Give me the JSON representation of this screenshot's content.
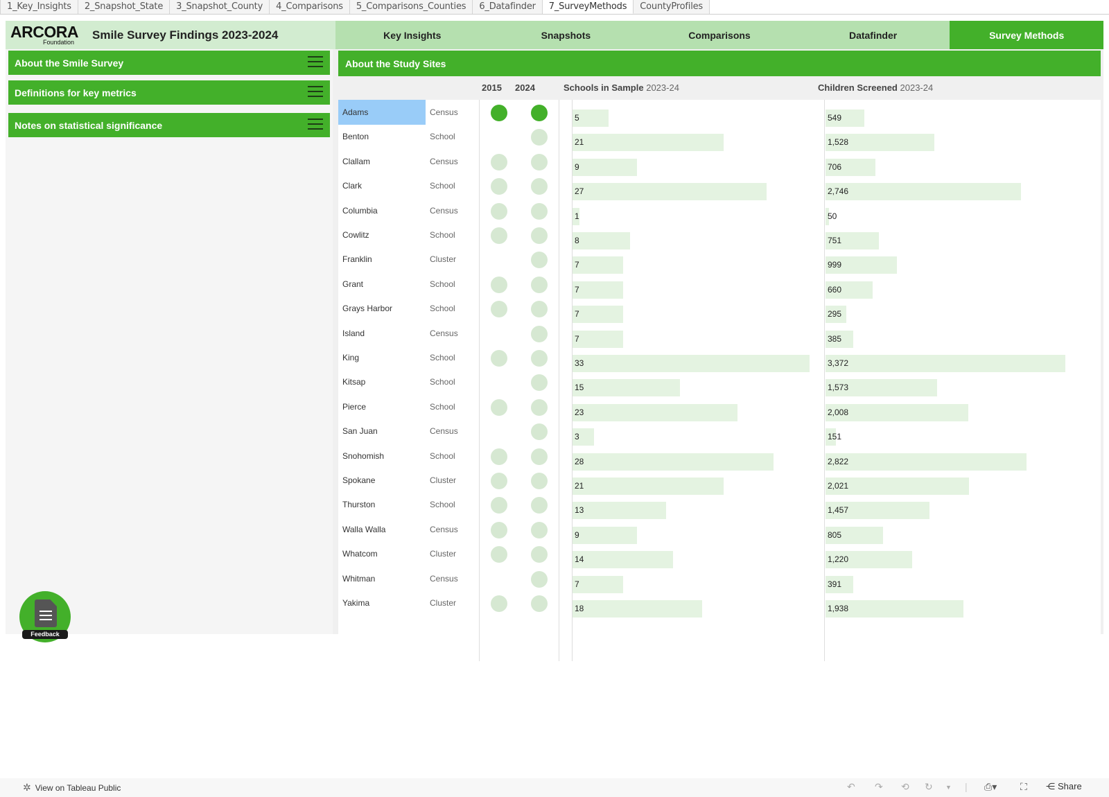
{
  "sheet_tabs": [
    {
      "label": "1_Key_Insights",
      "active": false
    },
    {
      "label": "2_Snapshot_State",
      "active": false
    },
    {
      "label": "3_Snapshot_County",
      "active": false
    },
    {
      "label": "4_Comparisons",
      "active": false
    },
    {
      "label": "5_Comparisons_Counties",
      "active": false
    },
    {
      "label": "6_Datafinder",
      "active": false
    },
    {
      "label": "7_SurveyMethods",
      "active": true
    },
    {
      "label": "CountyProfiles",
      "active": false
    }
  ],
  "header": {
    "logo_main": "ARCORA",
    "logo_sub": "Foundation",
    "title": "Smile Survey Findings 2023-2024",
    "nav": [
      {
        "label": "Key Insights",
        "active": false
      },
      {
        "label": "Snapshots",
        "active": false
      },
      {
        "label": "Comparisons",
        "active": false
      },
      {
        "label": "Datafinder",
        "active": false
      },
      {
        "label": "Survey Methods",
        "active": true
      }
    ]
  },
  "left_panel": {
    "accordions": [
      {
        "label": "About the Smile Survey"
      },
      {
        "label": "Definitions for key metrics"
      },
      {
        "label": "Notes on statistical significance"
      }
    ],
    "feedback_label": "Feedback"
  },
  "study_sites": {
    "title": "About the Study Sites",
    "col_2015": "2015",
    "col_2024": "2024",
    "schools_head": "Schools in Sample",
    "children_head": "Children Screened",
    "period": "2023-24",
    "selected_county": "Adams",
    "colors": {
      "dot_selected": "#43b02a",
      "dot": "#d6e8d2",
      "bar": "#e4f3e1",
      "selection": "#99ccf8"
    },
    "rows": [
      {
        "county": "Adams",
        "type": "Census",
        "in2015": true,
        "in2024": true,
        "schools": 5,
        "children": "549"
      },
      {
        "county": "Benton",
        "type": "School",
        "in2015": false,
        "in2024": true,
        "schools": 21,
        "children": "1,528"
      },
      {
        "county": "Clallam",
        "type": "Census",
        "in2015": true,
        "in2024": true,
        "schools": 9,
        "children": "706"
      },
      {
        "county": "Clark",
        "type": "School",
        "in2015": true,
        "in2024": true,
        "schools": 27,
        "children": "2,746"
      },
      {
        "county": "Columbia",
        "type": "Census",
        "in2015": true,
        "in2024": true,
        "schools": 1,
        "children": "50"
      },
      {
        "county": "Cowlitz",
        "type": "School",
        "in2015": true,
        "in2024": true,
        "schools": 8,
        "children": "751"
      },
      {
        "county": "Franklin",
        "type": "Cluster",
        "in2015": false,
        "in2024": true,
        "schools": 7,
        "children": "999"
      },
      {
        "county": "Grant",
        "type": "School",
        "in2015": true,
        "in2024": true,
        "schools": 7,
        "children": "660"
      },
      {
        "county": "Grays Harbor",
        "type": "School",
        "in2015": true,
        "in2024": true,
        "schools": 7,
        "children": "295"
      },
      {
        "county": "Island",
        "type": "Census",
        "in2015": false,
        "in2024": true,
        "schools": 7,
        "children": "385"
      },
      {
        "county": "King",
        "type": "School",
        "in2015": true,
        "in2024": true,
        "schools": 33,
        "children": "3,372"
      },
      {
        "county": "Kitsap",
        "type": "School",
        "in2015": false,
        "in2024": true,
        "schools": 15,
        "children": "1,573"
      },
      {
        "county": "Pierce",
        "type": "School",
        "in2015": true,
        "in2024": true,
        "schools": 23,
        "children": "2,008"
      },
      {
        "county": "San Juan",
        "type": "Census",
        "in2015": false,
        "in2024": true,
        "schools": 3,
        "children": "151"
      },
      {
        "county": "Snohomish",
        "type": "School",
        "in2015": true,
        "in2024": true,
        "schools": 28,
        "children": "2,822"
      },
      {
        "county": "Spokane",
        "type": "Cluster",
        "in2015": true,
        "in2024": true,
        "schools": 21,
        "children": "2,021"
      },
      {
        "county": "Thurston",
        "type": "School",
        "in2015": true,
        "in2024": true,
        "schools": 13,
        "children": "1,457"
      },
      {
        "county": "Walla Walla",
        "type": "Census",
        "in2015": true,
        "in2024": true,
        "schools": 9,
        "children": "805"
      },
      {
        "county": "Whatcom",
        "type": "Cluster",
        "in2015": true,
        "in2024": true,
        "schools": 14,
        "children": "1,220"
      },
      {
        "county": "Whitman",
        "type": "Census",
        "in2015": false,
        "in2024": true,
        "schools": 7,
        "children": "391"
      },
      {
        "county": "Yakima",
        "type": "Cluster",
        "in2015": true,
        "in2024": true,
        "schools": 18,
        "children": "1,938"
      }
    ]
  },
  "bottom_bar": {
    "tableau_link": "View on Tableau Public",
    "share": "Share",
    "icons": [
      "undo-icon",
      "redo-icon",
      "revert-icon",
      "refresh-icon",
      "pause-dropdown-icon",
      "download-icon",
      "fullscreen-icon",
      "share-icon"
    ]
  }
}
